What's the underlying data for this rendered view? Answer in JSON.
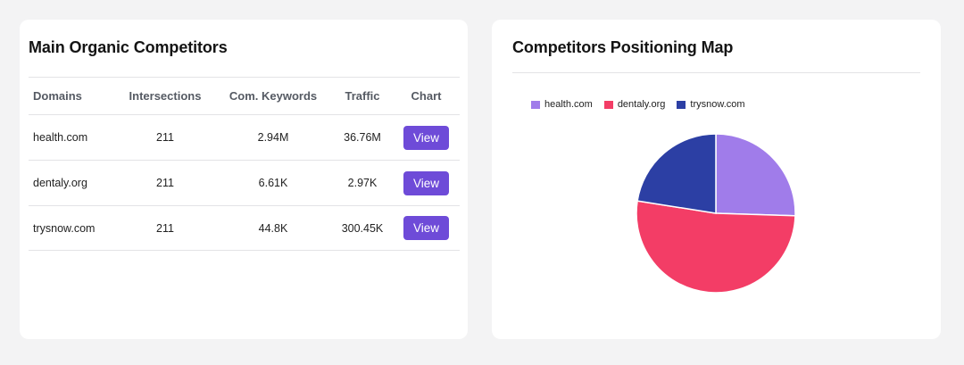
{
  "left_card": {
    "title": "Main Organic Competitors",
    "columns": {
      "domains": "Domains",
      "intersections": "Intersections",
      "keywords": "Com. Keywords",
      "traffic": "Traffic",
      "chart": "Chart"
    },
    "rows": [
      {
        "domain": "health.com",
        "intersections": "211",
        "keywords": "2.94M",
        "traffic": "36.76M",
        "action": "View"
      },
      {
        "domain": "dentaly.org",
        "intersections": "211",
        "keywords": "6.61K",
        "traffic": "2.97K",
        "action": "View"
      },
      {
        "domain": "trysnow.com",
        "intersections": "211",
        "keywords": "44.8K",
        "traffic": "300.45K",
        "action": "View"
      }
    ]
  },
  "right_card": {
    "title": "Competitors Positioning Map"
  },
  "chart_data": {
    "type": "pie",
    "title": "",
    "legend_placement": "top-left",
    "series": [
      {
        "name": "health.com",
        "value": 25.5,
        "color": "#a07cea"
      },
      {
        "name": "dentaly.org",
        "value": 52.0,
        "color": "#f33d66"
      },
      {
        "name": "trysnow.com",
        "value": 22.5,
        "color": "#2c3fa4"
      }
    ],
    "start_angle_deg": 0
  },
  "colors": {
    "button": "#6e4bd8",
    "card_background": "#ffffff",
    "page_background": "#f3f3f4"
  }
}
